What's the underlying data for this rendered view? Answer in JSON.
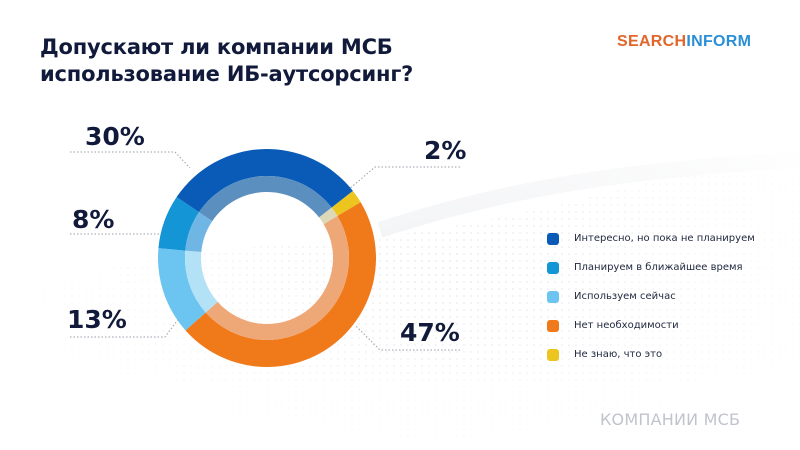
{
  "header": {
    "title_line1": "Допускают ли компании МСБ",
    "title_line2": "использование ИБ-аутсорсинг?",
    "logo_part1": "SEARCH",
    "logo_part2": "INFORM"
  },
  "labels": {
    "l30": "30%",
    "l8": "8%",
    "l13": "13%",
    "l2": "2%",
    "l47": "47%"
  },
  "legend": [
    {
      "label": "Интересно, но пока не планируем",
      "color": "#0a5bb8"
    },
    {
      "label": "Планируем в ближайшее время",
      "color": "#1495d6"
    },
    {
      "label": "Используем сейчас",
      "color": "#6cc4f0"
    },
    {
      "label": "Нет необходимости",
      "color": "#f07a1a"
    },
    {
      "label": "Не знаю, что это",
      "color": "#ecc61e"
    }
  ],
  "footer": "КОМПАНИИ МСБ",
  "chart_data": {
    "type": "pie",
    "title": "Допускают ли компании МСБ использование ИБ-аутсорсинг?",
    "categories": [
      "Интересно, но пока не планируем",
      "Планируем в ближайшее время",
      "Используем сейчас",
      "Нет необходимости",
      "Не знаю, что это"
    ],
    "values": [
      30,
      8,
      13,
      47,
      2
    ],
    "unit": "%",
    "donut": true,
    "legend_position": "right",
    "colors": [
      "#0a5bb8",
      "#1495d6",
      "#6cc4f0",
      "#f07a1a",
      "#ecc61e"
    ]
  }
}
